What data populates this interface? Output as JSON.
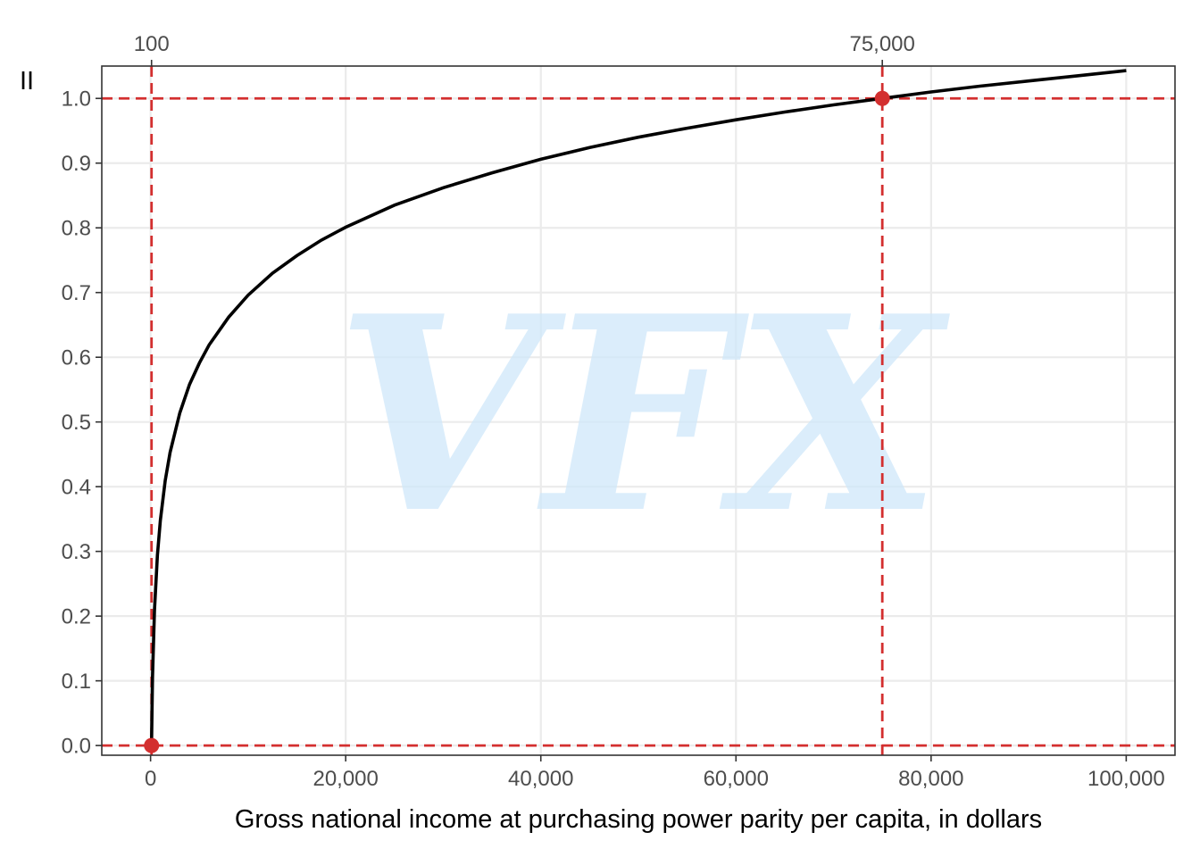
{
  "chart_data": {
    "type": "line",
    "title": "",
    "xlabel": "Gross national income at purchasing power parity per capita, in dollars",
    "ylabel": "II",
    "xlim": [
      -5000,
      105000
    ],
    "ylim": [
      -0.015,
      1.05
    ],
    "x_ticks": [
      0,
      20000,
      40000,
      60000,
      80000,
      100000
    ],
    "x_tick_labels": [
      "0",
      "20,000",
      "40,000",
      "60,000",
      "80,000",
      "100,000"
    ],
    "y_ticks": [
      0.0,
      0.1,
      0.2,
      0.3,
      0.4,
      0.5,
      0.6,
      0.7,
      0.8,
      0.9,
      1.0
    ],
    "y_tick_labels": [
      "0.0",
      "0.1",
      "0.2",
      "0.3",
      "0.4",
      "0.5",
      "0.6",
      "0.7",
      "0.8",
      "0.9",
      "1.0"
    ],
    "top_ticks": [
      100,
      75000
    ],
    "top_tick_labels": [
      "100",
      "75,000"
    ],
    "series": [
      {
        "color": "#000000",
        "x": [
          100,
          200,
          400,
          700,
          1000,
          1500,
          2000,
          3000,
          4000,
          5000,
          6000,
          8000,
          10000,
          12500,
          15000,
          17500,
          20000,
          25000,
          30000,
          35000,
          40000,
          45000,
          50000,
          55000,
          60000,
          65000,
          70000,
          75000,
          80000,
          85000,
          90000,
          95000,
          100000
        ],
        "y": [
          0.0,
          0.105,
          0.209,
          0.294,
          0.348,
          0.409,
          0.453,
          0.514,
          0.558,
          0.591,
          0.619,
          0.662,
          0.696,
          0.73,
          0.757,
          0.781,
          0.801,
          0.835,
          0.862,
          0.885,
          0.906,
          0.924,
          0.94,
          0.954,
          0.967,
          0.979,
          0.99,
          1.0,
          1.01,
          1.019,
          1.027,
          1.035,
          1.043
        ]
      }
    ],
    "reference_lines": {
      "vertical": [
        100,
        75000
      ],
      "horizontal": [
        0.0,
        1.0
      ],
      "color": "#d32f2f",
      "style": "dashed"
    },
    "highlight_points": [
      {
        "x": 100,
        "y": 0.0
      },
      {
        "x": 75000,
        "y": 1.0
      }
    ],
    "grid": true,
    "legend": "none"
  },
  "watermark": "VFX"
}
